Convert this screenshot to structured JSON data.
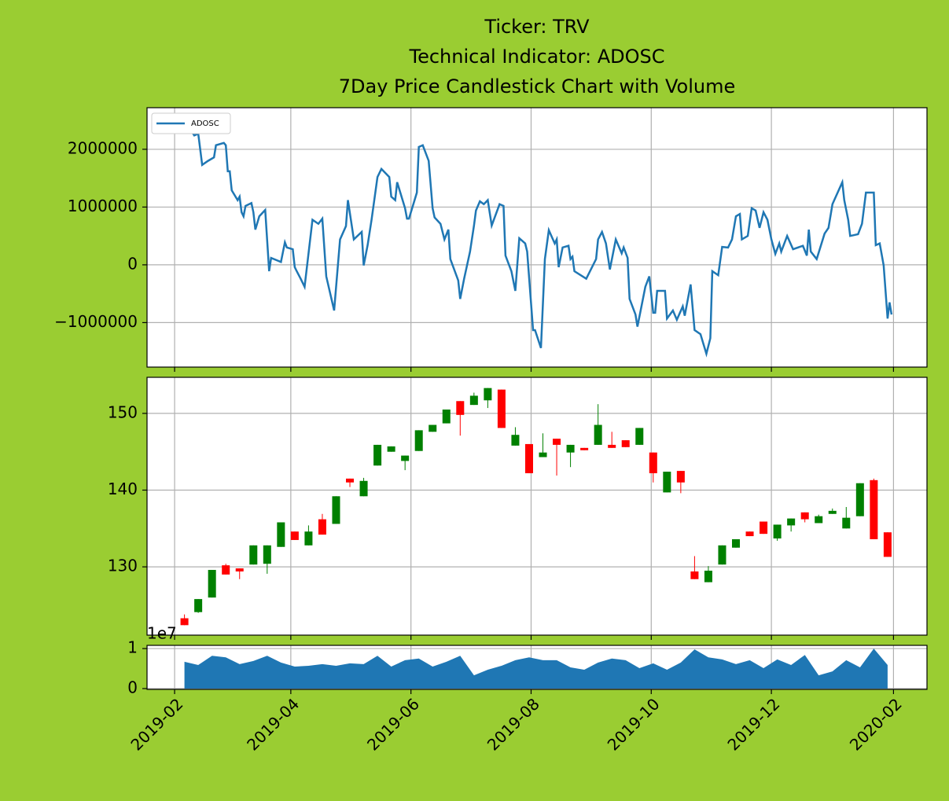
{
  "chart_data": [
    {
      "type": "line",
      "title": [
        "Ticker: TRV",
        "Technical Indicator: ADOSC",
        "7Day Price Candlestick Chart with Volume"
      ],
      "legend": "upper left",
      "grid": true,
      "ylim": [
        -1770000,
        2720000
      ],
      "yticks": [
        {
          "value": -1000000,
          "label": "−1000000"
        },
        0,
        1000000,
        2000000
      ],
      "x": [
        "2019-02-06",
        "2019-02-09",
        "2019-02-11",
        "2019-02-13",
        "2019-02-15",
        "2019-02-18",
        "2019-02-21",
        "2019-02-22",
        "2019-02-26",
        "2019-02-27",
        "2019-02-28",
        "2019-03-01",
        "2019-03-02",
        "2019-03-05",
        "2019-03-06",
        "2019-03-07",
        "2019-03-08",
        "2019-03-09",
        "2019-03-12",
        "2019-03-13",
        "2019-03-14",
        "2019-03-16",
        "2019-03-19",
        "2019-03-21",
        "2019-03-22",
        "2019-03-27",
        "2019-03-29",
        "2019-03-30",
        "2019-04-02",
        "2019-04-03",
        "2019-04-04",
        "2019-04-06",
        "2019-04-08",
        "2019-04-12",
        "2019-04-15",
        "2019-04-17",
        "2019-04-19",
        "2019-04-23",
        "2019-04-26",
        "2019-04-29",
        "2019-04-30",
        "2019-05-03",
        "2019-05-07",
        "2019-05-08",
        "2019-05-10",
        "2019-05-12",
        "2019-05-15",
        "2019-05-17",
        "2019-05-21",
        "2019-05-22",
        "2019-05-24",
        "2019-05-25",
        "2019-05-29",
        "2019-05-30",
        "2019-05-31",
        "2019-06-04",
        "2019-06-05",
        "2019-06-07",
        "2019-06-10",
        "2019-06-12",
        "2019-06-13",
        "2019-06-16",
        "2019-06-18",
        "2019-06-20",
        "2019-06-21",
        "2019-06-25",
        "2019-06-26",
        "2019-06-28",
        "2019-07-01",
        "2019-07-03",
        "2019-07-04",
        "2019-07-06",
        "2019-07-08",
        "2019-07-10",
        "2019-07-12",
        "2019-07-16",
        "2019-07-18",
        "2019-07-19",
        "2019-07-22",
        "2019-07-24",
        "2019-07-26",
        "2019-07-29",
        "2019-07-30",
        "2019-08-02",
        "2019-08-03",
        "2019-08-06",
        "2019-08-08",
        "2019-08-10",
        "2019-08-13",
        "2019-08-14",
        "2019-08-15",
        "2019-08-17",
        "2019-08-20",
        "2019-08-21",
        "2019-08-22",
        "2019-08-23",
        "2019-08-29",
        "2019-09-03",
        "2019-09-04",
        "2019-09-06",
        "2019-09-08",
        "2019-09-10",
        "2019-09-13",
        "2019-09-16",
        "2019-09-17",
        "2019-09-19",
        "2019-09-20",
        "2019-09-23",
        "2019-09-24",
        "2019-09-28",
        "2019-09-30",
        "2019-10-02",
        "2019-10-03",
        "2019-10-04",
        "2019-10-08",
        "2019-10-09",
        "2019-10-12",
        "2019-10-14",
        "2019-10-17",
        "2019-10-18",
        "2019-10-21",
        "2019-10-23",
        "2019-10-26",
        "2019-10-29",
        "2019-10-31",
        "2019-11-01",
        "2019-11-04",
        "2019-11-06",
        "2019-11-09",
        "2019-11-11",
        "2019-11-13",
        "2019-11-15",
        "2019-11-16",
        "2019-11-19",
        "2019-11-21",
        "2019-11-23",
        "2019-11-25",
        "2019-11-27",
        "2019-11-29",
        "2019-12-01",
        "2019-12-03",
        "2019-12-05",
        "2019-12-06",
        "2019-12-09",
        "2019-12-12",
        "2019-12-17",
        "2019-12-19",
        "2019-12-20",
        "2019-12-21",
        "2019-12-24",
        "2019-12-28",
        "2019-12-30",
        "2020-01-01",
        "2020-01-06",
        "2020-01-07",
        "2020-01-09",
        "2020-01-10",
        "2020-01-14",
        "2020-01-16",
        "2020-01-18",
        "2020-01-22",
        "2020-01-23",
        "2020-01-25",
        "2020-01-27",
        "2020-01-29",
        "2020-01-30",
        "2020-01-31"
      ],
      "series": [
        {
          "name": "ADOSC",
          "color": "#1f77b4",
          "values": [
            2440000,
            2340000,
            2240000,
            2270000,
            1730000,
            1800000,
            1860000,
            2070000,
            2110000,
            2070000,
            1620000,
            1620000,
            1290000,
            1120000,
            1180000,
            910000,
            840000,
            1020000,
            1070000,
            910000,
            610000,
            840000,
            950000,
            -110000,
            120000,
            50000,
            390000,
            300000,
            270000,
            -40000,
            -110000,
            -240000,
            -380000,
            780000,
            710000,
            800000,
            -200000,
            -790000,
            440000,
            670000,
            1120000,
            440000,
            570000,
            -10000,
            340000,
            780000,
            1520000,
            1660000,
            1520000,
            1180000,
            1120000,
            1430000,
            980000,
            800000,
            800000,
            1250000,
            2040000,
            2070000,
            1800000,
            980000,
            820000,
            710000,
            440000,
            610000,
            100000,
            -270000,
            -590000,
            -240000,
            230000,
            680000,
            940000,
            1100000,
            1050000,
            1120000,
            680000,
            1050000,
            1020000,
            160000,
            -110000,
            -450000,
            460000,
            370000,
            230000,
            -1130000,
            -1130000,
            -1440000,
            100000,
            600000,
            370000,
            440000,
            -40000,
            300000,
            330000,
            100000,
            140000,
            -110000,
            -240000,
            100000,
            440000,
            570000,
            370000,
            -80000,
            440000,
            200000,
            300000,
            120000,
            -590000,
            -860000,
            -1070000,
            -380000,
            -200000,
            -830000,
            -830000,
            -450000,
            -450000,
            -930000,
            -790000,
            -950000,
            -720000,
            -880000,
            -340000,
            -1130000,
            -1200000,
            -1540000,
            -1270000,
            -110000,
            -180000,
            310000,
            300000,
            440000,
            840000,
            880000,
            440000,
            500000,
            980000,
            940000,
            640000,
            910000,
            780000,
            440000,
            190000,
            370000,
            230000,
            500000,
            270000,
            330000,
            160000,
            610000,
            230000,
            100000,
            540000,
            640000,
            1050000,
            1430000,
            1120000,
            780000,
            500000,
            530000,
            710000,
            1250000,
            1250000,
            340000,
            370000,
            -10000,
            -930000,
            -650000,
            -860000
          ]
        }
      ]
    },
    {
      "type": "candlestick",
      "grid": true,
      "up_color": "green",
      "down_color": "red",
      "ylim": [
        121.1,
        154.7
      ],
      "yticks": [
        130,
        140,
        150
      ],
      "x": [
        "2019-02-06",
        "2019-02-13",
        "2019-02-20",
        "2019-02-27",
        "2019-03-06",
        "2019-03-13",
        "2019-03-20",
        "2019-03-27",
        "2019-04-03",
        "2019-04-10",
        "2019-04-17",
        "2019-04-24",
        "2019-05-01",
        "2019-05-08",
        "2019-05-15",
        "2019-05-22",
        "2019-05-29",
        "2019-06-05",
        "2019-06-12",
        "2019-06-19",
        "2019-06-26",
        "2019-07-03",
        "2019-07-10",
        "2019-07-17",
        "2019-07-24",
        "2019-07-31",
        "2019-08-07",
        "2019-08-14",
        "2019-08-21",
        "2019-08-28",
        "2019-09-04",
        "2019-09-11",
        "2019-09-18",
        "2019-09-25",
        "2019-10-02",
        "2019-10-09",
        "2019-10-16",
        "2019-10-23",
        "2019-10-30",
        "2019-11-06",
        "2019-11-13",
        "2019-11-20",
        "2019-11-27",
        "2019-12-04",
        "2019-12-11",
        "2019-12-18",
        "2019-12-25",
        "2020-01-01",
        "2020-01-08",
        "2020-01-15",
        "2020-01-22",
        "2020-01-29"
      ],
      "open": [
        123.3,
        124.1,
        126.0,
        130.2,
        129.8,
        130.3,
        130.4,
        132.6,
        134.6,
        132.8,
        136.2,
        135.6,
        141.5,
        139.2,
        143.2,
        145.0,
        143.8,
        145.1,
        147.6,
        148.7,
        151.6,
        151.1,
        151.7,
        153.1,
        145.8,
        146.0,
        144.3,
        146.7,
        144.9,
        145.5,
        145.9,
        145.9,
        146.5,
        145.9,
        144.9,
        139.7,
        142.5,
        129.4,
        128.0,
        130.3,
        132.5,
        134.6,
        135.9,
        133.7,
        135.4,
        137.1,
        135.7,
        136.9,
        135.0,
        136.6,
        141.3,
        134.5
      ],
      "high": [
        123.8,
        125.8,
        129.6,
        130.4,
        129.8,
        132.8,
        132.8,
        135.8,
        134.6,
        135.4,
        136.9,
        139.2,
        141.5,
        141.6,
        145.9,
        145.7,
        144.5,
        147.8,
        148.5,
        150.5,
        151.6,
        152.7,
        153.3,
        153.1,
        148.2,
        146.0,
        147.4,
        146.7,
        145.9,
        145.5,
        151.2,
        147.6,
        146.5,
        148.1,
        144.9,
        142.4,
        142.5,
        131.4,
        130.1,
        132.8,
        133.6,
        134.6,
        135.9,
        135.5,
        136.3,
        137.1,
        136.8,
        137.6,
        137.8,
        140.9,
        141.5,
        134.5
      ],
      "low": [
        122.4,
        124.0,
        126.0,
        129.0,
        128.4,
        130.3,
        129.1,
        132.6,
        133.5,
        132.8,
        134.2,
        135.6,
        140.4,
        139.2,
        143.2,
        145.0,
        142.6,
        145.1,
        147.6,
        148.7,
        147.1,
        151.1,
        150.7,
        148.1,
        145.8,
        142.2,
        144.3,
        141.9,
        143.0,
        145.2,
        145.9,
        145.5,
        145.6,
        145.9,
        141.0,
        139.7,
        139.6,
        128.4,
        128.0,
        130.3,
        132.5,
        134.0,
        134.3,
        133.4,
        134.6,
        135.8,
        135.7,
        136.9,
        135.0,
        136.6,
        133.6,
        131.3
      ],
      "close": [
        122.4,
        125.8,
        129.6,
        129.0,
        129.4,
        132.8,
        132.8,
        135.8,
        133.5,
        134.6,
        134.2,
        139.2,
        141.0,
        141.2,
        145.9,
        145.7,
        144.5,
        147.8,
        148.5,
        150.5,
        149.8,
        152.3,
        153.3,
        148.1,
        147.2,
        142.2,
        144.9,
        145.9,
        145.9,
        145.2,
        148.5,
        145.5,
        145.6,
        148.1,
        142.2,
        142.4,
        141.0,
        128.4,
        129.5,
        132.8,
        133.6,
        134.0,
        134.3,
        135.5,
        136.3,
        136.2,
        136.6,
        137.3,
        136.4,
        140.9,
        133.6,
        131.3
      ]
    },
    {
      "type": "area",
      "grid": true,
      "color": "#1f77b4",
      "y_offset_label": "1e7",
      "ylim": [
        -0.02,
        1.08
      ],
      "yticks": [
        0,
        1
      ],
      "xlim": [
        "2019-01-18",
        "2020-02-18"
      ],
      "xticks": [
        "2019-02",
        "2019-04",
        "2019-06",
        "2019-08",
        "2019-10",
        "2019-12",
        "2020-02"
      ],
      "x": [
        "2019-02-06",
        "2019-02-13",
        "2019-02-20",
        "2019-02-27",
        "2019-03-06",
        "2019-03-13",
        "2019-03-20",
        "2019-03-27",
        "2019-04-03",
        "2019-04-10",
        "2019-04-17",
        "2019-04-24",
        "2019-05-01",
        "2019-05-08",
        "2019-05-15",
        "2019-05-22",
        "2019-05-29",
        "2019-06-05",
        "2019-06-12",
        "2019-06-19",
        "2019-06-26",
        "2019-07-03",
        "2019-07-10",
        "2019-07-17",
        "2019-07-24",
        "2019-07-31",
        "2019-08-07",
        "2019-08-14",
        "2019-08-21",
        "2019-08-28",
        "2019-09-04",
        "2019-09-11",
        "2019-09-18",
        "2019-09-25",
        "2019-10-02",
        "2019-10-09",
        "2019-10-16",
        "2019-10-23",
        "2019-10-30",
        "2019-11-06",
        "2019-11-13",
        "2019-11-20",
        "2019-11-27",
        "2019-12-04",
        "2019-12-11",
        "2019-12-18",
        "2019-12-25",
        "2020-01-01",
        "2020-01-08",
        "2020-01-15",
        "2020-01-22",
        "2020-01-29"
      ],
      "values": [
        0.67,
        0.59,
        0.82,
        0.78,
        0.61,
        0.69,
        0.82,
        0.65,
        0.55,
        0.57,
        0.61,
        0.57,
        0.63,
        0.61,
        0.82,
        0.55,
        0.71,
        0.75,
        0.55,
        0.67,
        0.82,
        0.33,
        0.47,
        0.57,
        0.71,
        0.78,
        0.71,
        0.71,
        0.53,
        0.47,
        0.65,
        0.75,
        0.71,
        0.51,
        0.63,
        0.47,
        0.65,
        0.98,
        0.78,
        0.73,
        0.61,
        0.71,
        0.51,
        0.73,
        0.59,
        0.84,
        0.33,
        0.43,
        0.71,
        0.53,
        1.0,
        0.59
      ]
    }
  ]
}
